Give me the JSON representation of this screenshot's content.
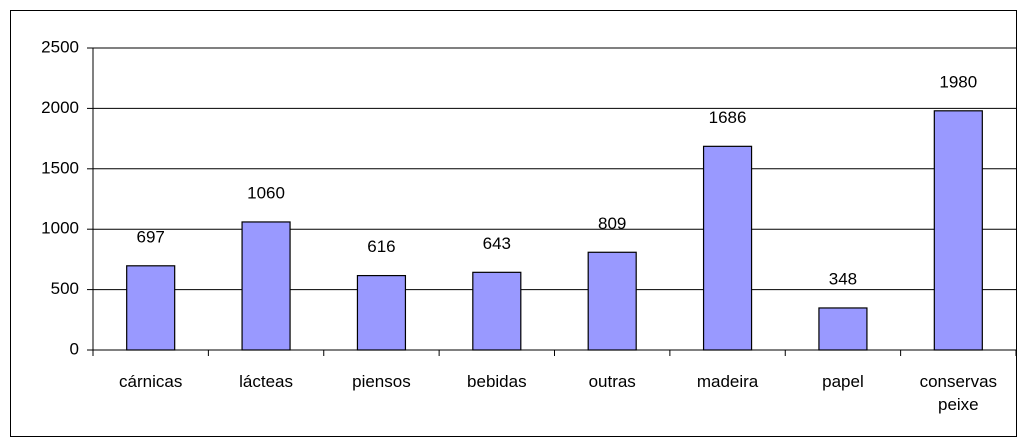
{
  "chart_data": {
    "type": "bar",
    "categories": [
      "cárnicas",
      "lácteas",
      "piensos",
      "bebidas",
      "outras",
      "madeira",
      "papel",
      "conservas peixe"
    ],
    "values": [
      697,
      1060,
      616,
      643,
      809,
      1686,
      348,
      1980
    ],
    "color": "#9999ff",
    "ylim": [
      0,
      2500
    ],
    "yticks": [
      0,
      500,
      1000,
      1500,
      2000,
      2500
    ],
    "grid": true
  }
}
